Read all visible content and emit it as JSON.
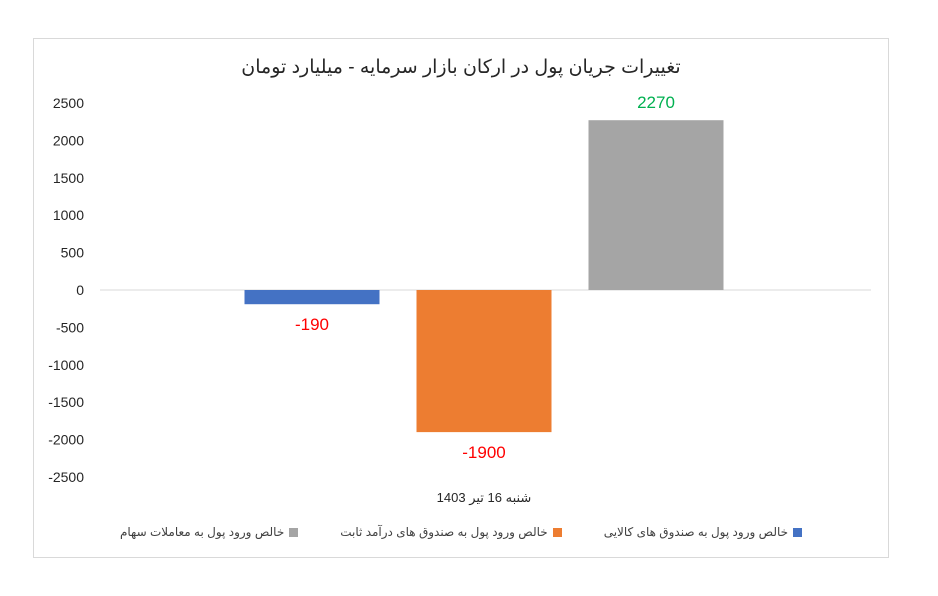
{
  "chart_data": {
    "type": "bar",
    "title": "تغییرات جریان پول در ارکان بازار سرمایه - میلیارد تومان",
    "categories": [
      "شنبه 16 تیر 1403"
    ],
    "series": [
      {
        "name": "خالص ورود پول به صندوق های کالایی",
        "values": [
          -190
        ],
        "color": "#4472c4",
        "label_color": "#ff0000"
      },
      {
        "name": "خالص ورود پول به صندوق های درآمد ثابت",
        "values": [
          -1900
        ],
        "color": "#ed7d31",
        "label_color": "#ff0000"
      },
      {
        "name": "خالص ورود پول به معاملات سهام",
        "values": [
          2270
        ],
        "color": "#a5a5a5",
        "label_color": "#00b050"
      }
    ],
    "ylim": [
      -2500,
      2500
    ],
    "yticks": [
      2500,
      2000,
      1500,
      1000,
      500,
      0,
      -500,
      -1000,
      -1500,
      -2000,
      -2500
    ],
    "ytick_labels": [
      "2500",
      "2000",
      "1500",
      "1000",
      "500",
      "0",
      "-500",
      "-1000",
      "-1500",
      "-2000",
      "-2500"
    ],
    "data_labels": [
      "-190",
      "-1900",
      "2270"
    ],
    "xlabel": "",
    "ylabel": "",
    "grid": false,
    "legend_position": "bottom"
  }
}
